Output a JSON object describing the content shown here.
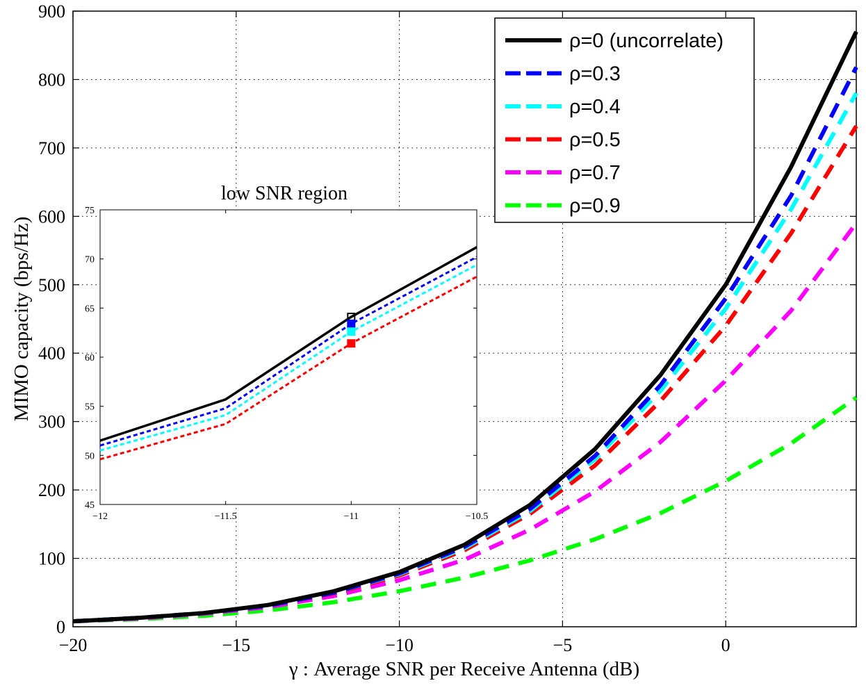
{
  "chart_data": [
    {
      "type": "line",
      "xlabel": "γ :  Average SNR per Receive Antenna (dB)",
      "ylabel": "MIMO capacity (bps/Hz)",
      "xlim": [
        -20,
        4
      ],
      "ylim": [
        0,
        900
      ],
      "grid": true,
      "legend_position": "top-right",
      "xticks": [
        -20,
        -15,
        -10,
        -5,
        0
      ],
      "xtick_labels": [
        "−20",
        "−15",
        "−10",
        "−5",
        "0"
      ],
      "yticks": [
        0,
        100,
        200,
        300,
        400,
        500,
        600,
        700,
        800,
        900
      ],
      "ytick_labels": [
        "0",
        "100",
        "200",
        "300",
        "400",
        "500",
        "600",
        "700",
        "800",
        "900"
      ],
      "x": [
        -20,
        -18,
        -16,
        -14,
        -12,
        -10,
        -8,
        -6,
        -4,
        -2,
        0,
        2,
        4
      ],
      "series": [
        {
          "name": "ρ=0 (uncorrelate)",
          "color": "#000000",
          "dash": "solid",
          "values": [
            8,
            13,
            20,
            32,
            52,
            80,
            120,
            178,
            260,
            368,
            500,
            672,
            870
          ]
        },
        {
          "name": "ρ=0.3",
          "color": "#0000ff",
          "dash": "dashed",
          "values": [
            8,
            13,
            20,
            31,
            50,
            78,
            117,
            172,
            250,
            353,
            480,
            630,
            818
          ]
        },
        {
          "name": "ρ=0.4",
          "color": "#00ffff",
          "dash": "dashed",
          "values": [
            8,
            13,
            20,
            31,
            50,
            77,
            115,
            169,
            245,
            345,
            465,
            610,
            780
          ]
        },
        {
          "name": "ρ=0.5",
          "color": "#ff0000",
          "dash": "dashed",
          "values": [
            8,
            13,
            20,
            31,
            49,
            75,
            112,
            165,
            236,
            330,
            440,
            575,
            732
          ]
        },
        {
          "name": "ρ=0.7",
          "color": "#ff00ff",
          "dash": "dashed",
          "values": [
            8,
            12,
            19,
            29,
            45,
            68,
            98,
            142,
            198,
            270,
            360,
            462,
            590
          ]
        },
        {
          "name": "ρ=0.9",
          "color": "#00ff00",
          "dash": "dashed",
          "values": [
            8,
            11,
            16,
            24,
            36,
            52,
            72,
            97,
            128,
            166,
            213,
            268,
            335
          ]
        }
      ]
    },
    {
      "type": "line",
      "title": "low SNR region",
      "xlim": [
        -12,
        -10.5
      ],
      "ylim": [
        45,
        75
      ],
      "xticks": [
        -12,
        -11.5,
        -11,
        -10.5
      ],
      "xtick_labels": [
        "−12",
        "−11.5",
        "−11",
        "−10.5"
      ],
      "yticks": [
        45,
        50,
        55,
        60,
        65,
        70,
        75
      ],
      "ytick_labels": [
        "45",
        "50",
        "55",
        "60",
        "65",
        "70",
        "75"
      ],
      "x": [
        -12,
        -11.5,
        -11,
        -10.5
      ],
      "markers_at_x": -11,
      "series": [
        {
          "name": "ρ=0 (uncorrelate)",
          "color": "#000000",
          "dash": "solid",
          "values": [
            51.5,
            55.7,
            64.1,
            71.2
          ]
        },
        {
          "name": "ρ=0.3",
          "color": "#0000ff",
          "dash": "dotted",
          "values": [
            51.0,
            54.8,
            63.4,
            70.2
          ]
        },
        {
          "name": "ρ=0.4",
          "color": "#00ffff",
          "dash": "dotted",
          "values": [
            50.5,
            54.1,
            62.6,
            69.4
          ]
        },
        {
          "name": "ρ=0.5",
          "color": "#ff0000",
          "dash": "dotted",
          "values": [
            49.6,
            53.2,
            61.4,
            68.2
          ]
        }
      ]
    }
  ]
}
